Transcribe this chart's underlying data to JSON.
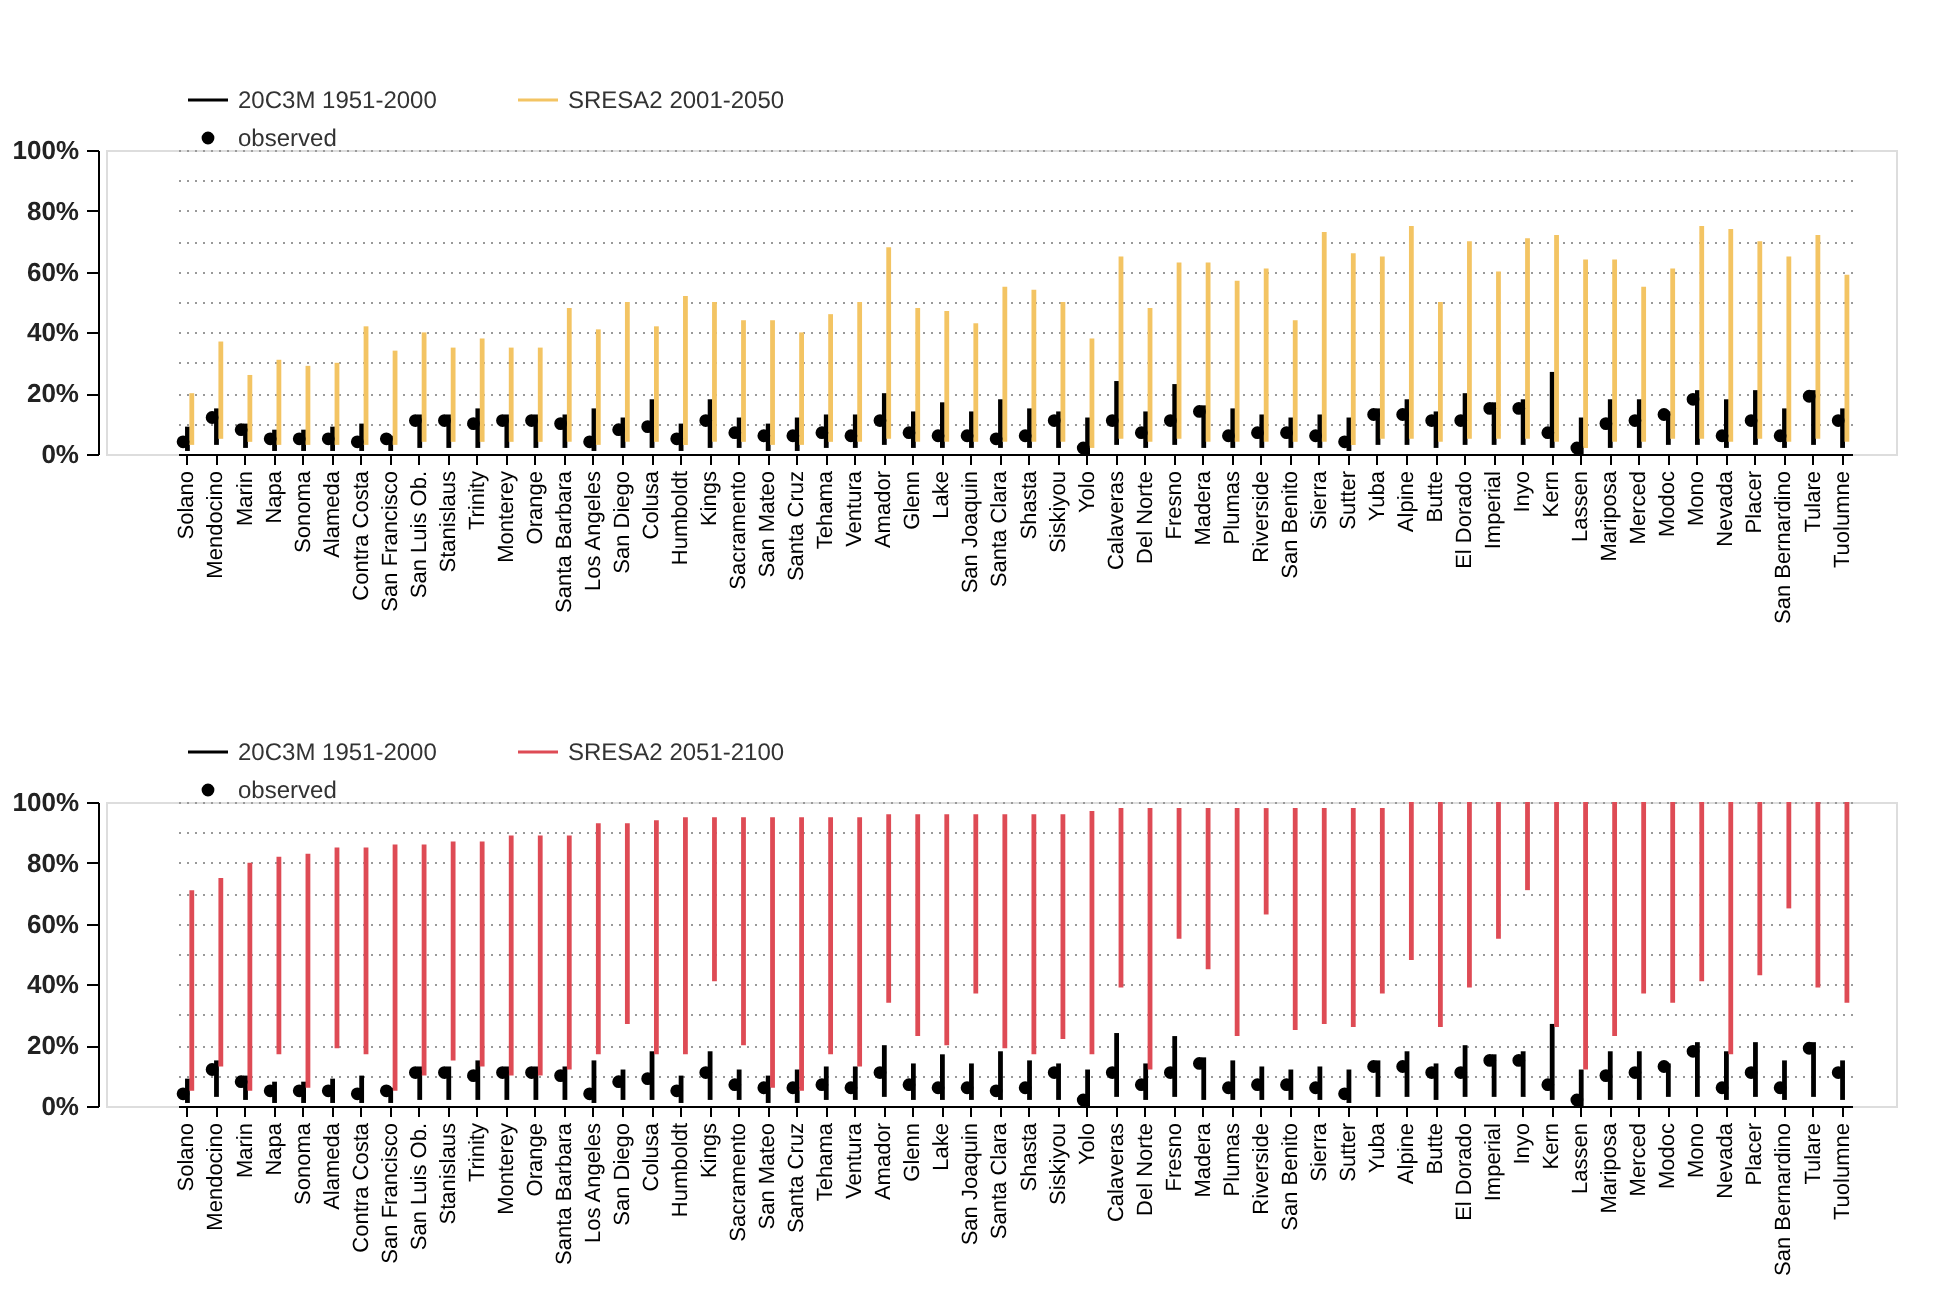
{
  "chart_data": [
    {
      "type": "bar",
      "categories": [
        "Solano",
        "Mendocino",
        "Marin",
        "Napa",
        "Sonoma",
        "Alameda",
        "Contra Costa",
        "San Francisco",
        "San Luis Ob.",
        "Stanislaus",
        "Trinity",
        "Monterey",
        "Orange",
        "Santa Barbara",
        "Los Angeles",
        "San Diego",
        "Colusa",
        "Humboldt",
        "Kings",
        "Sacramento",
        "San Mateo",
        "Santa Cruz",
        "Tehama",
        "Ventura",
        "Amador",
        "Glenn",
        "Lake",
        "San Joaquin",
        "Santa Clara",
        "Shasta",
        "Siskiyou",
        "Yolo",
        "Calaveras",
        "Del Norte",
        "Fresno",
        "Madera",
        "Plumas",
        "Riverside",
        "San Benito",
        "Sierra",
        "Sutter",
        "Yuba",
        "Alpine",
        "Butte",
        "El Dorado",
        "Imperial",
        "Inyo",
        "Kern",
        "Lassen",
        "Mariposa",
        "Merced",
        "Modoc",
        "Mono",
        "Nevada",
        "Placer",
        "San Bernardino",
        "Tulare",
        "Tuolumne"
      ],
      "series": [
        {
          "name": "20C3M 1951-2000",
          "color": "#000000",
          "base": [
            1,
            3,
            2,
            1,
            1,
            1,
            1,
            1,
            2,
            2,
            2,
            2,
            2,
            2,
            1,
            2,
            2,
            1,
            2,
            2,
            1,
            1,
            2,
            2,
            3,
            2,
            2,
            2,
            2,
            2,
            2,
            0,
            3,
            2,
            3,
            2,
            2,
            2,
            2,
            2,
            1,
            3,
            3,
            2,
            3,
            3,
            3,
            2,
            0,
            2,
            2,
            3,
            3,
            2,
            3,
            2,
            3,
            2
          ],
          "values": [
            8,
            12,
            8,
            7,
            7,
            8,
            9,
            5,
            11,
            11,
            13,
            11,
            11,
            11,
            14,
            10,
            16,
            9,
            16,
            10,
            9,
            11,
            11,
            11,
            17,
            12,
            15,
            12,
            16,
            13,
            12,
            12,
            21,
            12,
            20,
            14,
            13,
            11,
            10,
            11,
            11,
            12,
            15,
            12,
            17,
            14,
            15,
            25,
            12,
            16,
            16,
            11,
            18,
            16,
            18,
            13,
            18,
            13
          ]
        },
        {
          "name": "SRESA2 2001-2050",
          "color": "#f3c463",
          "base": [
            3,
            5,
            4,
            3,
            3,
            3,
            3,
            3,
            4,
            4,
            4,
            4,
            4,
            4,
            3,
            4,
            4,
            3,
            4,
            4,
            3,
            3,
            4,
            4,
            5,
            4,
            4,
            4,
            4,
            4,
            4,
            2,
            5,
            4,
            5,
            4,
            4,
            4,
            4,
            4,
            3,
            5,
            5,
            4,
            5,
            5,
            5,
            4,
            2,
            4,
            4,
            5,
            5,
            4,
            5,
            4,
            5,
            4
          ],
          "values": [
            17,
            32,
            22,
            28,
            26,
            27,
            39,
            31,
            36,
            31,
            34,
            31,
            31,
            44,
            38,
            46,
            38,
            49,
            46,
            40,
            41,
            37,
            42,
            46,
            63,
            44,
            43,
            39,
            51,
            50,
            46,
            36,
            60,
            44,
            58,
            59,
            53,
            57,
            40,
            69,
            63,
            60,
            70,
            46,
            65,
            55,
            66,
            68,
            62,
            60,
            51,
            56,
            70,
            70,
            65,
            61,
            67,
            55
          ]
        },
        {
          "name": "observed",
          "type": "scatter",
          "color": "#000000",
          "marker": "circle",
          "x": [
            "Solano",
            "Mendocino",
            "Marin",
            "Napa",
            "Sonoma",
            "Alameda",
            "Contra Costa",
            "San Francisco",
            "San Luis Ob.",
            "Stanislaus",
            "Trinity",
            "Monterey",
            "Orange",
            "Santa Barbara",
            "Los Angeles",
            "San Diego",
            "Colusa",
            "Humboldt",
            "Kings",
            "Sacramento",
            "San Mateo",
            "Santa Cruz",
            "Tehama",
            "Ventura",
            "Amador",
            "Glenn",
            "Lake",
            "San Joaquin",
            "Santa Clara",
            "Shasta",
            "Siskiyou",
            "Yolo",
            "Calaveras",
            "Del Norte",
            "Fresno",
            "Madera",
            "Plumas",
            "Riverside",
            "San Benito",
            "Sierra",
            "Sutter",
            "Yuba",
            "Alpine",
            "Butte",
            "El Dorado",
            "Imperial",
            "Inyo",
            "Kern",
            "Lassen",
            "Mariposa",
            "Merced",
            "Modoc",
            "Mono",
            "Nevada",
            "Placer",
            "San Bernardino",
            "Tulare",
            "Tuolumne"
          ],
          "values": [
            4,
            12,
            8,
            5,
            5,
            5,
            4,
            5,
            11,
            11,
            10,
            11,
            11,
            10,
            4,
            8,
            9,
            5,
            11,
            7,
            6,
            6,
            7,
            6,
            11,
            7,
            6,
            6,
            5,
            6,
            11,
            2,
            11,
            7,
            11,
            14,
            6,
            7,
            7,
            6,
            4,
            13,
            13,
            11,
            11,
            15,
            15,
            7,
            2,
            10,
            11,
            13,
            18,
            6,
            11,
            6,
            19,
            11
          ]
        }
      ],
      "ylim": [
        0,
        100
      ],
      "yticks": [
        {
          "value": 0,
          "label": "0%"
        },
        {
          "value": 10,
          "label": null
        },
        {
          "value": 20,
          "label": "20%"
        },
        {
          "value": 30,
          "label": null
        },
        {
          "value": 40,
          "label": "40%"
        },
        {
          "value": 50,
          "label": null
        },
        {
          "value": 60,
          "label": "60%"
        },
        {
          "value": 70,
          "label": null
        },
        {
          "value": 80,
          "label": "80%"
        },
        {
          "value": 90,
          "label": null
        },
        {
          "value": 100,
          "label": "100%"
        }
      ],
      "grid": "y",
      "legend": "top left"
    },
    {
      "type": "bar",
      "categories": [
        "Solano",
        "Mendocino",
        "Marin",
        "Napa",
        "Sonoma",
        "Alameda",
        "Contra Costa",
        "San Francisco",
        "San Luis Ob.",
        "Stanislaus",
        "Trinity",
        "Monterey",
        "Orange",
        "Santa Barbara",
        "Los Angeles",
        "San Diego",
        "Colusa",
        "Humboldt",
        "Kings",
        "Sacramento",
        "San Mateo",
        "Santa Cruz",
        "Tehama",
        "Ventura",
        "Amador",
        "Glenn",
        "Lake",
        "San Joaquin",
        "Santa Clara",
        "Shasta",
        "Siskiyou",
        "Yolo",
        "Calaveras",
        "Del Norte",
        "Fresno",
        "Madera",
        "Plumas",
        "Riverside",
        "San Benito",
        "Sierra",
        "Sutter",
        "Yuba",
        "Alpine",
        "Butte",
        "El Dorado",
        "Imperial",
        "Inyo",
        "Kern",
        "Lassen",
        "Mariposa",
        "Merced",
        "Modoc",
        "Mono",
        "Nevada",
        "Placer",
        "San Bernardino",
        "Tulare",
        "Tuolumne"
      ],
      "series": [
        {
          "name": "20C3M 1951-2000",
          "color": "#000000",
          "base": [
            1,
            3,
            2,
            1,
            1,
            1,
            1,
            1,
            2,
            2,
            2,
            2,
            2,
            2,
            1,
            2,
            2,
            1,
            2,
            2,
            1,
            1,
            2,
            2,
            3,
            2,
            2,
            2,
            2,
            2,
            2,
            0,
            3,
            2,
            3,
            2,
            2,
            2,
            2,
            2,
            1,
            3,
            3,
            2,
            3,
            3,
            3,
            2,
            0,
            2,
            2,
            3,
            3,
            2,
            3,
            2,
            3,
            2
          ],
          "values": [
            8,
            12,
            8,
            7,
            7,
            8,
            9,
            5,
            11,
            11,
            13,
            11,
            11,
            11,
            14,
            10,
            16,
            9,
            16,
            10,
            9,
            11,
            11,
            11,
            17,
            12,
            15,
            12,
            16,
            13,
            12,
            12,
            21,
            12,
            20,
            14,
            13,
            11,
            10,
            11,
            11,
            12,
            15,
            12,
            17,
            14,
            15,
            25,
            12,
            16,
            16,
            11,
            18,
            16,
            18,
            13,
            18,
            13
          ]
        },
        {
          "name": "SRESA2 2051-2100",
          "color": "#de4b55",
          "base": [
            5,
            13,
            5,
            17,
            6,
            19,
            17,
            5,
            10,
            15,
            13,
            10,
            10,
            12,
            17,
            27,
            17,
            17,
            41,
            20,
            6,
            5,
            17,
            13,
            34,
            23,
            20,
            37,
            19,
            17,
            22,
            17,
            39,
            12,
            55,
            45,
            23,
            63,
            25,
            27,
            26,
            37,
            48,
            26,
            39,
            55,
            71,
            26,
            12,
            23,
            37,
            34,
            41,
            17,
            43,
            65,
            39,
            34
          ],
          "values": [
            66,
            62,
            75,
            65,
            77,
            66,
            68,
            81,
            76,
            72,
            74,
            79,
            79,
            77,
            76,
            66,
            77,
            78,
            54,
            75,
            89,
            90,
            78,
            82,
            62,
            73,
            76,
            59,
            77,
            79,
            74,
            80,
            59,
            86,
            43,
            53,
            75,
            35,
            73,
            71,
            72,
            61,
            52,
            74,
            61,
            45,
            29,
            74,
            88,
            77,
            63,
            66,
            59,
            83,
            57,
            35,
            61,
            66
          ]
        },
        {
          "name": "observed",
          "type": "scatter",
          "color": "#000000",
          "marker": "circle",
          "x": [
            "Solano",
            "Mendocino",
            "Marin",
            "Napa",
            "Sonoma",
            "Alameda",
            "Contra Costa",
            "San Francisco",
            "San Luis Ob.",
            "Stanislaus",
            "Trinity",
            "Monterey",
            "Orange",
            "Santa Barbara",
            "Los Angeles",
            "San Diego",
            "Colusa",
            "Humboldt",
            "Kings",
            "Sacramento",
            "San Mateo",
            "Santa Cruz",
            "Tehama",
            "Ventura",
            "Amador",
            "Glenn",
            "Lake",
            "San Joaquin",
            "Santa Clara",
            "Shasta",
            "Siskiyou",
            "Yolo",
            "Calaveras",
            "Del Norte",
            "Fresno",
            "Madera",
            "Plumas",
            "Riverside",
            "San Benito",
            "Sierra",
            "Sutter",
            "Yuba",
            "Alpine",
            "Butte",
            "El Dorado",
            "Imperial",
            "Inyo",
            "Kern",
            "Lassen",
            "Mariposa",
            "Merced",
            "Modoc",
            "Mono",
            "Nevada",
            "Placer",
            "San Bernardino",
            "Tulare",
            "Tuolumne"
          ],
          "values": [
            4,
            12,
            8,
            5,
            5,
            5,
            4,
            5,
            11,
            11,
            10,
            11,
            11,
            10,
            4,
            8,
            9,
            5,
            11,
            7,
            6,
            6,
            7,
            6,
            11,
            7,
            6,
            6,
            5,
            6,
            11,
            2,
            11,
            7,
            11,
            14,
            6,
            7,
            7,
            6,
            4,
            13,
            13,
            11,
            11,
            15,
            15,
            7,
            2,
            10,
            11,
            13,
            18,
            6,
            11,
            6,
            19,
            11
          ]
        }
      ],
      "ylim": [
        0,
        100
      ],
      "yticks": [
        {
          "value": 0,
          "label": "0%"
        },
        {
          "value": 10,
          "label": null
        },
        {
          "value": 20,
          "label": "20%"
        },
        {
          "value": 30,
          "label": null
        },
        {
          "value": 40,
          "label": "40%"
        },
        {
          "value": 50,
          "label": null
        },
        {
          "value": 60,
          "label": "60%"
        },
        {
          "value": 70,
          "label": null
        },
        {
          "value": 80,
          "label": "80%"
        },
        {
          "value": 90,
          "label": null
        },
        {
          "value": 100,
          "label": "100%"
        }
      ],
      "grid": "y",
      "legend": "top left"
    }
  ]
}
